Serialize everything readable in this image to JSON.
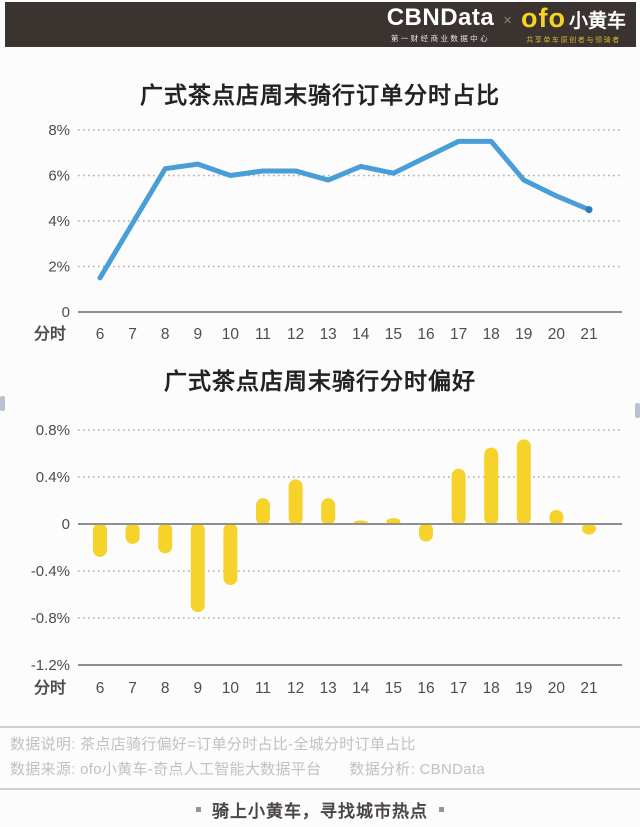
{
  "header": {
    "cbn_logo": "CBNData",
    "cbn_sub": "第一财经商业数据中心",
    "cross": "×",
    "ofo_logo": "ofo",
    "ofo_name": "小黄车",
    "ofo_sub": "共享单车原创者与领骑者"
  },
  "chart_data": [
    {
      "type": "line",
      "title": "广式茶点店周末骑行订单分时占比",
      "xlabel": "分时",
      "categories": [
        6,
        7,
        8,
        9,
        10,
        11,
        12,
        13,
        14,
        15,
        16,
        17,
        18,
        19,
        20,
        21
      ],
      "values": [
        1.5,
        3.9,
        6.3,
        6.5,
        6.0,
        6.2,
        6.2,
        5.8,
        6.4,
        6.1,
        6.8,
        7.5,
        7.5,
        5.8,
        5.1,
        4.5
      ],
      "unit": "%",
      "ylim": [
        0,
        8
      ],
      "y_ticks": [
        {
          "v": 8,
          "label": "8%"
        },
        {
          "v": 6,
          "label": "6%"
        },
        {
          "v": 4,
          "label": "4%"
        },
        {
          "v": 2,
          "label": "2%"
        },
        {
          "v": 0,
          "label": "0"
        }
      ],
      "grid": "dotted horizontal",
      "legend": "none",
      "line_color": "#4a9ed8",
      "end_dot_color": "#2e7cb3"
    },
    {
      "type": "bar",
      "title": "广式茶点店周末骑行分时偏好",
      "xlabel": "分时",
      "categories": [
        6,
        7,
        8,
        9,
        10,
        11,
        12,
        13,
        14,
        15,
        16,
        17,
        18,
        19,
        20,
        21
      ],
      "values": [
        -0.28,
        -0.17,
        -0.25,
        -0.75,
        -0.52,
        0.22,
        0.38,
        0.22,
        0.03,
        0.05,
        -0.15,
        0.47,
        0.65,
        0.72,
        0.12,
        -0.09
      ],
      "unit": "%",
      "ylim": [
        -1.2,
        0.8
      ],
      "y_ticks": [
        {
          "v": 0.8,
          "label": "0.8%"
        },
        {
          "v": 0.4,
          "label": "0.4%"
        },
        {
          "v": 0,
          "label": "0"
        },
        {
          "v": -0.4,
          "label": "-0.4%"
        },
        {
          "v": -0.8,
          "label": "-0.8%"
        },
        {
          "v": -1.2,
          "label": "-1.2%"
        }
      ],
      "grid": "dotted horizontal",
      "legend": "none",
      "bar_color": "#f6d32b"
    }
  ],
  "notes": {
    "line1": "数据说明: 茶点店骑行偏好=订单分时占比-全城分时订单占比",
    "line2_source": "数据来源: ofo小黄车-奇点人工智能大数据平台",
    "line2_analysis": "数据分析: CBNData"
  },
  "footer": {
    "slogan": "骑上小黄车，寻找城市热点"
  },
  "colors": {
    "header_bg": "#3a3330",
    "line_blue": "#4a9ed8",
    "bar_yellow": "#f6d32b",
    "grid_gray": "#adadad",
    "axis_gray": "#8f8f8f",
    "tick_text": "#4d4d4d"
  }
}
